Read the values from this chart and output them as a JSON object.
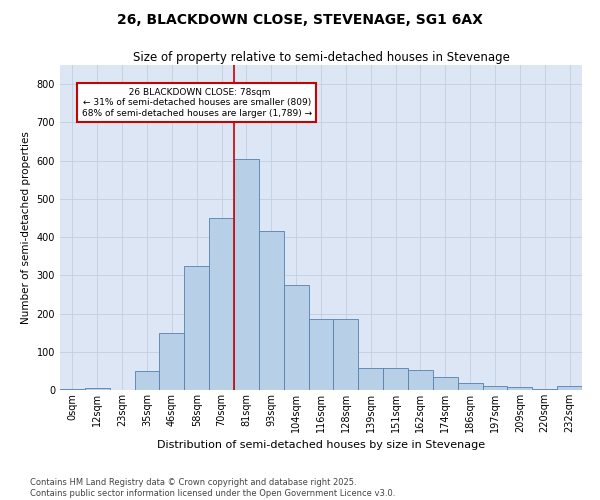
{
  "title": "26, BLACKDOWN CLOSE, STEVENAGE, SG1 6AX",
  "subtitle": "Size of property relative to semi-detached houses in Stevenage",
  "xlabel": "Distribution of semi-detached houses by size in Stevenage",
  "ylabel": "Number of semi-detached properties",
  "bin_labels": [
    "0sqm",
    "12sqm",
    "23sqm",
    "35sqm",
    "46sqm",
    "58sqm",
    "70sqm",
    "81sqm",
    "93sqm",
    "104sqm",
    "116sqm",
    "128sqm",
    "139sqm",
    "151sqm",
    "162sqm",
    "174sqm",
    "186sqm",
    "197sqm",
    "209sqm",
    "220sqm",
    "232sqm"
  ],
  "bar_values": [
    2,
    5,
    0,
    50,
    150,
    325,
    450,
    605,
    415,
    275,
    185,
    185,
    58,
    57,
    52,
    35,
    18,
    10,
    8,
    2,
    10
  ],
  "bar_color": "#b8cfe8",
  "bar_edge_color": "#5580b0",
  "vline_color": "#cc0000",
  "vline_x_index": 7,
  "annotation_box_color": "#ffffff",
  "annotation_box_edge": "#cc0000",
  "property_label": "26 BLACKDOWN CLOSE: 78sqm",
  "pct_smaller": 31,
  "pct_larger": 68,
  "n_smaller": 809,
  "n_larger": 1789,
  "ylim": [
    0,
    850
  ],
  "yticks": [
    0,
    100,
    200,
    300,
    400,
    500,
    600,
    700,
    800
  ],
  "grid_color": "#c0cfe0",
  "background_color": "#dce6f5",
  "footer_text": "Contains HM Land Registry data © Crown copyright and database right 2025.\nContains public sector information licensed under the Open Government Licence v3.0.",
  "title_fontsize": 10,
  "subtitle_fontsize": 8.5,
  "xlabel_fontsize": 8,
  "ylabel_fontsize": 7.5,
  "tick_fontsize": 7,
  "footer_fontsize": 6
}
